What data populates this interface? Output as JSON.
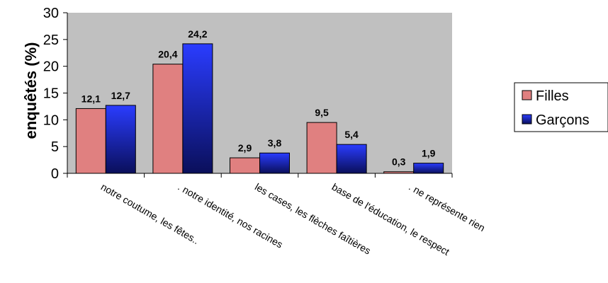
{
  "chart_data": {
    "type": "bar",
    "categories": [
      "notre coutume, les fêtes..",
      ". notre identité, nos racines",
      "les cases, les flèches faîtières",
      "base de l'éducation, le respect",
      ". ne représente rien"
    ],
    "series": [
      {
        "name": "Filles",
        "values": [
          12.1,
          20.4,
          2.9,
          9.5,
          0.3
        ],
        "labels": [
          "12,1",
          "20,4",
          "2,9",
          "9,5",
          "0,3"
        ],
        "color": "#e08080"
      },
      {
        "name": "Garçons",
        "values": [
          12.7,
          24.2,
          3.8,
          5.4,
          1.9
        ],
        "labels": [
          "12,7",
          "24,2",
          "3,8",
          "5,4",
          "1,9"
        ],
        "color": "#1a2fe0"
      }
    ],
    "ylabel": "enquêtés (%)",
    "ylim": [
      0,
      30
    ],
    "yticks": [
      0,
      5,
      10,
      15,
      20,
      25,
      30
    ],
    "grid": false,
    "plot_background": "#c0c0c0",
    "legend_position": "right"
  }
}
